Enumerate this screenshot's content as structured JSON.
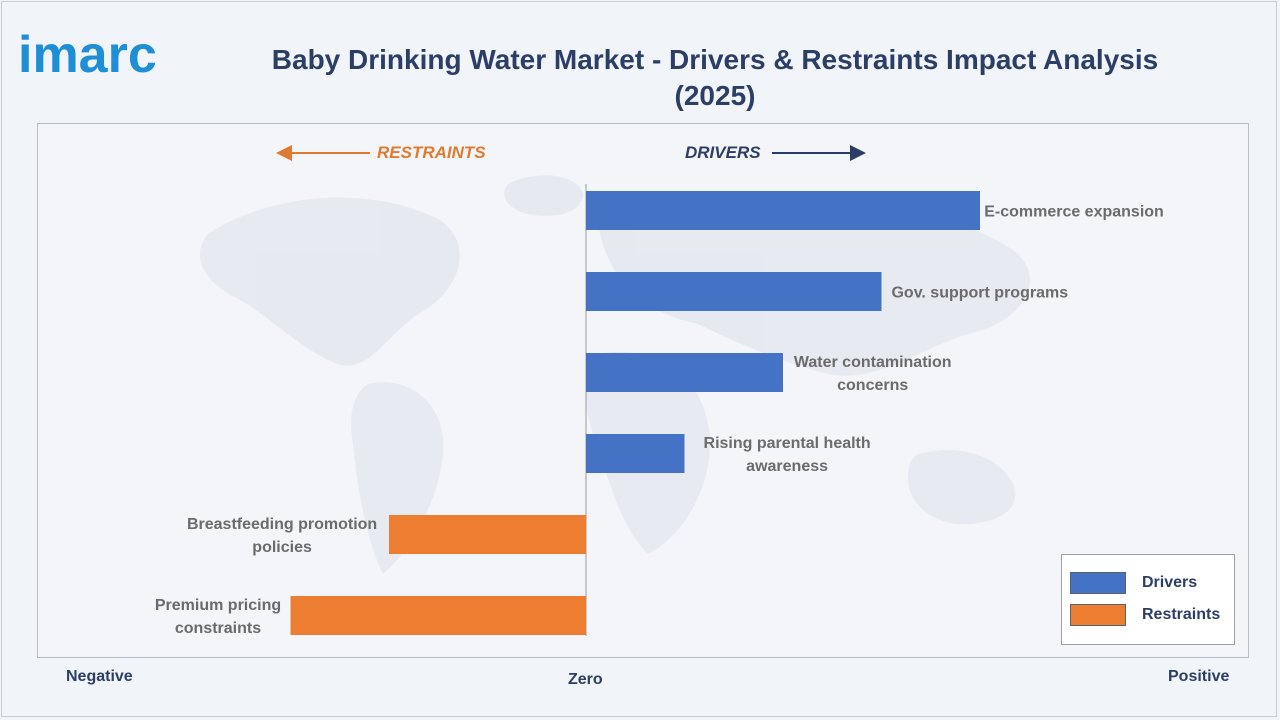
{
  "header": {
    "logo_text": "imarc",
    "title": "Baby Drinking Water Market - Drivers & Restraints Impact Analysis (2025)"
  },
  "direction_labels": {
    "restraints": "RESTRAINTS",
    "drivers": "DRIVERS"
  },
  "axis_words": {
    "negative": "Negative",
    "zero": "Zero",
    "positive": "Positive"
  },
  "legend": [
    {
      "label": "Drivers",
      "color": "#4472c4"
    },
    {
      "label": "Restraints",
      "color": "#ed7d31"
    }
  ],
  "colors": {
    "drivers": "#4472c4",
    "restraints": "#ed7d31",
    "title": "#2b3f66",
    "label_text": "#6b6b6b"
  },
  "chart_data": {
    "type": "bar",
    "orientation": "horizontal",
    "title": "Baby Drinking Water Market - Drivers & Restraints Impact Analysis (2025)",
    "xlim": [
      -3,
      4
    ],
    "categories": [
      "E-commerce expansion",
      "Gov. support programs",
      "Water contamination concerns",
      "Rising parental health awareness",
      "Breastfeeding promotion policies",
      "Premium pricing constraints"
    ],
    "series": [
      {
        "name": "Drivers",
        "values": [
          4,
          3,
          2,
          1,
          0,
          0
        ]
      },
      {
        "name": "Restraints",
        "values": [
          0,
          0,
          0,
          0,
          -2,
          -3
        ]
      }
    ],
    "label_lines": [
      [
        "E-commerce expansion"
      ],
      [
        "Gov. support programs"
      ],
      [
        "Water contamination",
        "concerns"
      ],
      [
        "Rising parental health",
        "awareness"
      ],
      [
        "Breastfeeding promotion",
        "policies"
      ],
      [
        "Premium pricing",
        "constraints"
      ]
    ],
    "legend_position": "bottom-right",
    "grid": false
  }
}
